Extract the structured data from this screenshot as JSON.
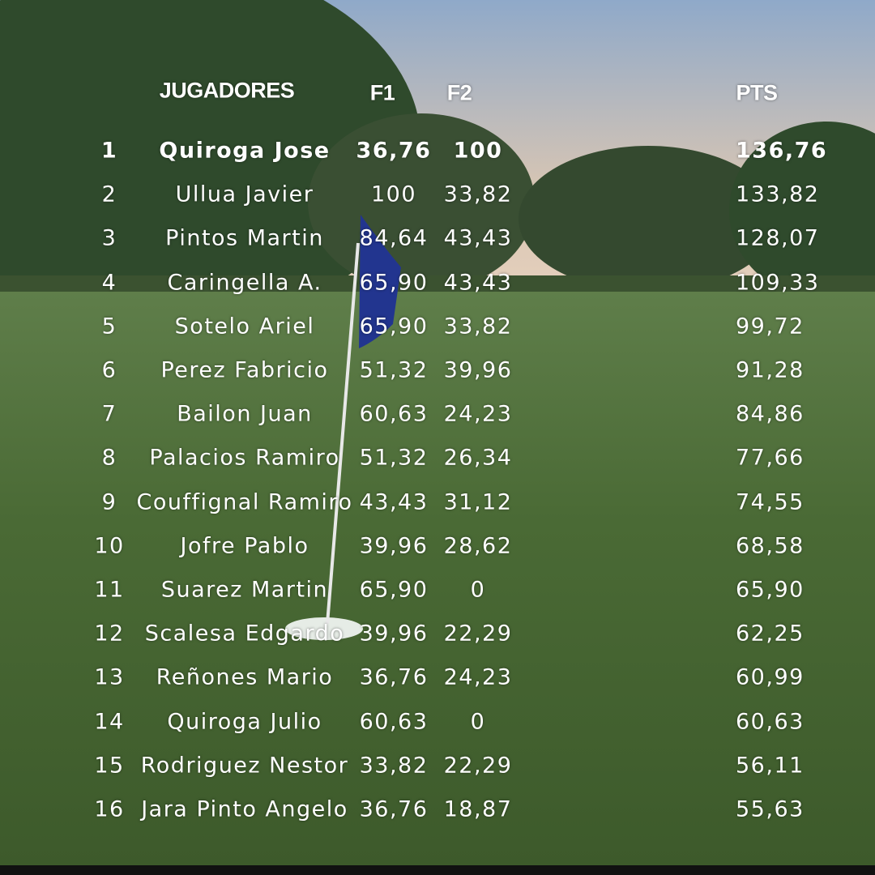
{
  "header": {
    "columns": [
      "JUGADORES",
      "F1",
      "F2",
      "PTS"
    ]
  },
  "table": {
    "rows": [
      [
        "1",
        "Quiroga Jose",
        "36,76",
        "100",
        "136,76"
      ],
      [
        "2",
        "Ullua Javier",
        "100",
        "33,82",
        "133,82"
      ],
      [
        "3",
        "Pintos Martin",
        "84,64",
        "43,43",
        "128,07"
      ],
      [
        "4",
        "Caringella A.",
        "65,90",
        "43,43",
        "109,33"
      ],
      [
        "5",
        "Sotelo Ariel",
        "65,90",
        "33,82",
        "99,72"
      ],
      [
        "6",
        "Perez Fabricio",
        "51,32",
        "39,96",
        "91,28"
      ],
      [
        "7",
        "Bailon Juan",
        "60,63",
        "24,23",
        "84,86"
      ],
      [
        "8",
        "Palacios Ramiro",
        "51,32",
        "26,34",
        "77,66"
      ],
      [
        "9",
        "Couffignal Ramiro",
        "43,43",
        "31,12",
        "74,55"
      ],
      [
        "10",
        "Jofre Pablo",
        "39,96",
        "28,62",
        "68,58"
      ],
      [
        "11",
        "Suarez Martin",
        "65,90",
        "0",
        "65,90"
      ],
      [
        "12",
        "Scalesa Edgardo",
        "39,96",
        "22,29",
        "62,25"
      ],
      [
        "13",
        "Reñones Mario",
        "36,76",
        "24,23",
        "60,99"
      ],
      [
        "14",
        "Quiroga Julio",
        "60,63",
        "0",
        "60,63"
      ],
      [
        "15",
        "Rodriguez Nestor",
        "33,82",
        "22,29",
        "56,11"
      ],
      [
        "16",
        "Jara Pinto Angelo",
        "36,76",
        "18,87",
        "55,63"
      ]
    ]
  }
}
